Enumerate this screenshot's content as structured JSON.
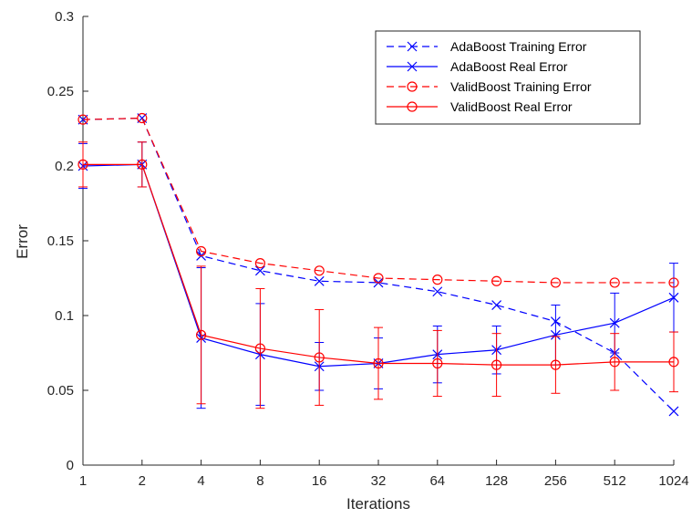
{
  "chart_data": {
    "type": "line",
    "title": "",
    "xlabel": "Iterations",
    "ylabel": "Error",
    "categories": [
      "1",
      "2",
      "4",
      "8",
      "16",
      "32",
      "64",
      "128",
      "256",
      "512",
      "1024"
    ],
    "ylim": [
      0,
      0.3
    ],
    "yticks": [
      "0",
      "0.05",
      "0.1",
      "0.15",
      "0.2",
      "0.25",
      "0.3"
    ],
    "grid": false,
    "legend_position": "top-right",
    "series": [
      {
        "name": "AdaBoost Training Error",
        "color": "#0000ff",
        "line_style": "dashed",
        "marker": "x",
        "values": [
          0.231,
          0.232,
          0.14,
          0.13,
          0.123,
          0.122,
          0.116,
          0.107,
          0.096,
          0.075,
          0.036
        ]
      },
      {
        "name": "AdaBoost Real Error",
        "color": "#0000ff",
        "line_style": "solid",
        "marker": "x",
        "values": [
          0.2,
          0.201,
          0.085,
          0.074,
          0.066,
          0.068,
          0.074,
          0.077,
          0.087,
          0.095,
          0.112
        ],
        "error": [
          0.015,
          0.015,
          0.047,
          0.034,
          0.016,
          0.017,
          0.019,
          0.016,
          0.02,
          0.02,
          0.023
        ]
      },
      {
        "name": "ValidBoost Training Error",
        "color": "#ff0000",
        "line_style": "dashed",
        "marker": "o",
        "values": [
          0.231,
          0.232,
          0.143,
          0.135,
          0.13,
          0.125,
          0.124,
          0.123,
          0.122,
          0.122,
          0.122
        ]
      },
      {
        "name": "ValidBoost Real Error",
        "color": "#ff0000",
        "line_style": "solid",
        "marker": "o",
        "values": [
          0.201,
          0.201,
          0.087,
          0.078,
          0.072,
          0.068,
          0.068,
          0.067,
          0.067,
          0.069,
          0.069
        ],
        "error": [
          0.015,
          0.015,
          0.046,
          0.04,
          0.032,
          0.024,
          0.022,
          0.021,
          0.019,
          0.019,
          0.02
        ]
      }
    ]
  }
}
